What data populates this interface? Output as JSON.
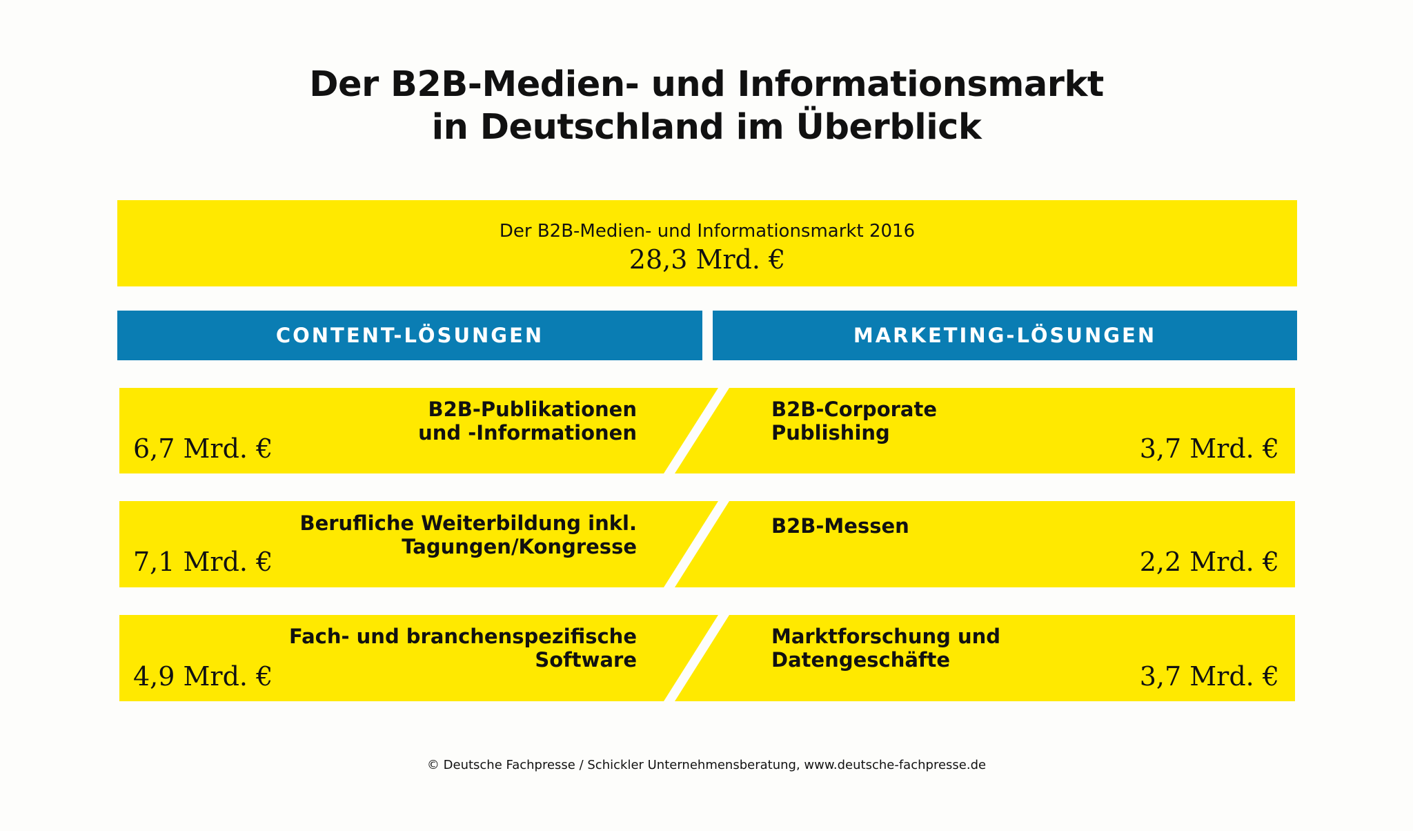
{
  "title": {
    "line1": "Der B2B-Medien- und Informationsmarkt",
    "line2": "in Deutschland im Überblick"
  },
  "total": {
    "label": "Der B2B-Medien- und Informationsmarkt 2016",
    "value": "28,3 Mrd. €"
  },
  "columns": {
    "left_header": "CONTENT-LÖSUNGEN",
    "right_header": "MARKETING-LÖSUNGEN"
  },
  "rows": [
    {
      "left": {
        "label": "B2B-Publikationen\nund -Informationen",
        "value": "6,7 Mrd. €"
      },
      "right": {
        "label": "B2B-Corporate\nPublishing",
        "value": "3,7 Mrd. €"
      }
    },
    {
      "left": {
        "label": "Berufliche Weiterbildung inkl.\nTagungen/Kongresse",
        "value": "7,1 Mrd. €"
      },
      "right": {
        "label": "B2B-Messen",
        "value": "2,2 Mrd. €"
      }
    },
    {
      "left": {
        "label": "Fach- und branchenspezifische\nSoftware",
        "value": "4,9 Mrd. €"
      },
      "right": {
        "label": "Marktforschung und\nDatengeschäfte",
        "value": "3,7 Mrd. €"
      }
    }
  ],
  "footer": "© Deutsche Fachpresse / Schickler Unternehmensberatung, www.deutsche-fachpresse.de",
  "colors": {
    "yellow": "#ffe900",
    "blue": "#0a7db3",
    "background": "#fdfdfb"
  }
}
